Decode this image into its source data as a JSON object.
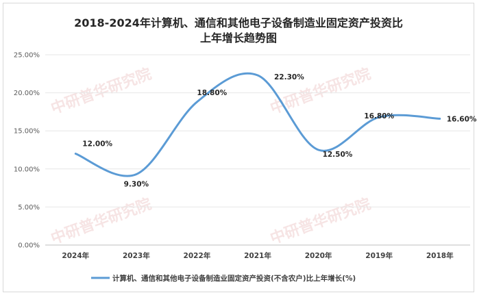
{
  "chart_data": {
    "type": "line",
    "title_line1": "2018-2024年计算机、通信和其他电子设备制造业固定资产投资比",
    "title_line2": "上年增长趋势图",
    "categories": [
      "2024年",
      "2023年",
      "2022年",
      "2021年",
      "2020年",
      "2019年",
      "2018年"
    ],
    "series": [
      {
        "name": "计算机、通信和其他电子设备制造业固定资产投资(不含农户)比上年增长(%)",
        "values": [
          12.0,
          9.3,
          18.8,
          22.3,
          12.5,
          16.8,
          16.6
        ],
        "labels": [
          "12.00%",
          "9.30%",
          "18.80%",
          "22.30%",
          "12.50%",
          "16.80%",
          "16.60%"
        ],
        "color": "#5b9bd5"
      }
    ],
    "ylim": [
      0,
      25
    ],
    "yticks": [
      "0.00%",
      "5.00%",
      "10.00%",
      "15.00%",
      "20.00%",
      "25.00%"
    ],
    "grid": true,
    "legend": "bottom",
    "watermark": "中研普华研究院"
  }
}
